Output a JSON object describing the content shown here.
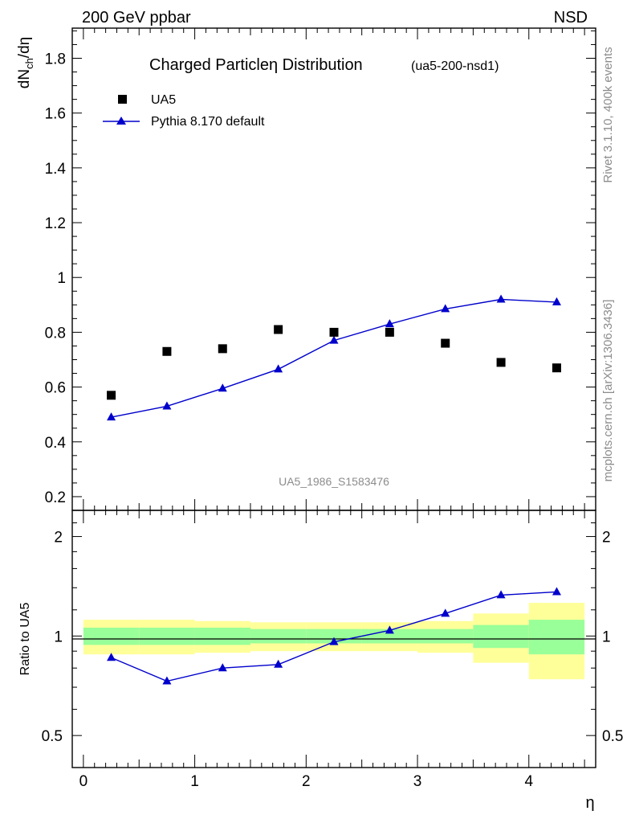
{
  "header": {
    "left": "200 GeV ppbar",
    "right": "NSD"
  },
  "side_labels": {
    "rivet": "Rivet 3.1.10,  400k events",
    "mcplots": "mcplots.cern.ch [arXiv:1306.3436]"
  },
  "colors": {
    "data": "#000000",
    "mc": "#0000cc",
    "band_inner": "#99ff99",
    "band_outer": "#ffff99",
    "text_grey": "#8c8c8c"
  },
  "chart_data": {
    "type": "scatter",
    "title": "Charged Particleη Distribution",
    "title_tag": "(ua5-200-nsd1)",
    "ylabel_main": "dNch/dη",
    "ylabel_ratio": "Ratio to UA5",
    "xlabel": "η",
    "analysis_id": "UA5_1986_S1583476",
    "xlim": [
      -0.1,
      4.6
    ],
    "ylim_main": [
      0.15,
      1.91
    ],
    "ylim_ratio": [
      0.4,
      2.4
    ],
    "ratio_scale": "log",
    "xticks": [
      0,
      1,
      2,
      3,
      4
    ],
    "yticks_main": [
      0.2,
      0.4,
      0.6,
      0.8,
      1,
      1.2,
      1.4,
      1.6,
      1.8
    ],
    "yticks_ratio": [
      0.5,
      1,
      2
    ],
    "legend": [
      "UA5",
      "Pythia 8.170 default"
    ],
    "series": [
      {
        "name": "UA5",
        "marker": "square",
        "x": [
          0.25,
          0.75,
          1.25,
          1.75,
          2.25,
          2.75,
          3.25,
          3.75,
          4.25
        ],
        "y": [
          0.57,
          0.73,
          0.74,
          0.81,
          0.8,
          0.8,
          0.76,
          0.69,
          0.67
        ]
      },
      {
        "name": "Pythia 8.170 default",
        "marker": "triangle",
        "x": [
          0.25,
          0.75,
          1.25,
          1.75,
          2.25,
          2.75,
          3.25,
          3.75,
          4.25
        ],
        "y": [
          0.49,
          0.53,
          0.595,
          0.665,
          0.77,
          0.83,
          0.885,
          0.92,
          0.91
        ]
      }
    ],
    "ratio": {
      "x": [
        0.25,
        0.75,
        1.25,
        1.75,
        2.25,
        2.75,
        3.25,
        3.75,
        4.25
      ],
      "y": [
        0.86,
        0.73,
        0.8,
        0.82,
        0.96,
        1.04,
        1.17,
        1.33,
        1.36
      ]
    },
    "bands": {
      "edges": [
        0,
        0.5,
        1,
        1.5,
        2,
        2.5,
        3,
        3.5,
        4,
        4.5
      ],
      "inner_lo": [
        0.94,
        0.94,
        0.94,
        0.95,
        0.95,
        0.95,
        0.95,
        0.92,
        0.88
      ],
      "inner_hi": [
        1.06,
        1.06,
        1.06,
        1.05,
        1.05,
        1.05,
        1.05,
        1.08,
        1.12
      ],
      "outer_lo": [
        0.88,
        0.88,
        0.89,
        0.9,
        0.9,
        0.9,
        0.89,
        0.83,
        0.74
      ],
      "outer_hi": [
        1.12,
        1.12,
        1.11,
        1.1,
        1.1,
        1.1,
        1.11,
        1.17,
        1.26
      ]
    }
  }
}
